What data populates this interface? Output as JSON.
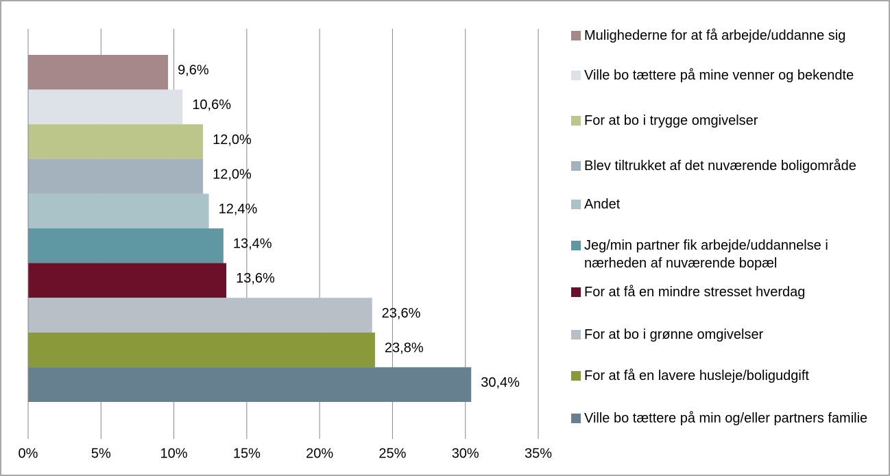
{
  "chart_data": {
    "type": "bar",
    "orientation": "horizontal",
    "grid": true,
    "legend": "right",
    "xlim": [
      0,
      35
    ],
    "xticks": [
      {
        "value": 0,
        "label": "0%"
      },
      {
        "value": 5,
        "label": "5%"
      },
      {
        "value": 10,
        "label": "10%"
      },
      {
        "value": 15,
        "label": "15%"
      },
      {
        "value": 20,
        "label": "20%"
      },
      {
        "value": 25,
        "label": "25%"
      },
      {
        "value": 30,
        "label": "30%"
      },
      {
        "value": 35,
        "label": "35%"
      }
    ],
    "series": [
      {
        "name": "Mulighederne for at få arbejde/uddanne sig",
        "color": "#a6888a",
        "values": [
          9.6
        ],
        "value_labels": [
          "9,6%"
        ]
      },
      {
        "name": "Ville bo tættere på mine venner og bekendte",
        "color": "#dde1e8",
        "values": [
          10.6
        ],
        "value_labels": [
          "10,6%"
        ]
      },
      {
        "name": "For at bo i trygge omgivelser",
        "color": "#bcc68a",
        "values": [
          12.0
        ],
        "value_labels": [
          "12,0%"
        ]
      },
      {
        "name": "Blev tiltrukket af det nuværende boligområde",
        "color": "#a3b2bd",
        "values": [
          12.0
        ],
        "value_labels": [
          "12,0%"
        ]
      },
      {
        "name": "Andet",
        "color": "#a9c3c8",
        "values": [
          12.4
        ],
        "value_labels": [
          "12,4%"
        ]
      },
      {
        "name": "Jeg/min partner fik arbejde/uddannelse i nærheden af nuværende bopæl",
        "color": "#5f97a3",
        "values": [
          13.4
        ],
        "value_labels": [
          "13,4%"
        ]
      },
      {
        "name": "For at få en mindre stresset hverdag",
        "color": "#6b1028",
        "values": [
          13.6
        ],
        "value_labels": [
          "13,6%"
        ]
      },
      {
        "name": "For at bo i grønne omgivelser",
        "color": "#b9bfc7",
        "values": [
          23.6
        ],
        "value_labels": [
          "23,6%"
        ]
      },
      {
        "name": "For at få en lavere husleje/boligudgift",
        "color": "#8a9a3b",
        "values": [
          23.8
        ],
        "value_labels": [
          "23,8%"
        ]
      },
      {
        "name": "Ville bo tættere på min og/eller partners familie",
        "color": "#67808f",
        "values": [
          30.4
        ],
        "value_labels": [
          "30,4%"
        ]
      }
    ]
  }
}
